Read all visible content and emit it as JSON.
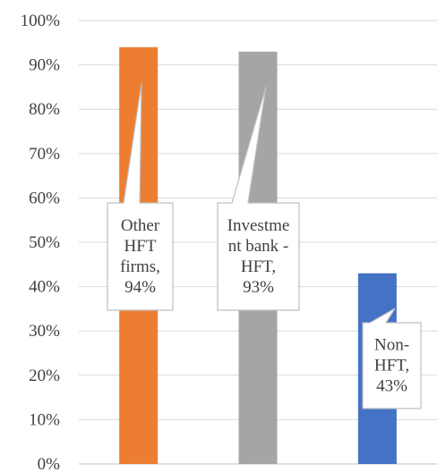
{
  "chart_data": {
    "type": "bar",
    "categories": [
      "Other HFT firms",
      "Investment bank - HFT",
      "Non-HFT"
    ],
    "values": [
      94,
      93,
      43
    ],
    "unit": "%",
    "ylim": [
      0,
      100
    ],
    "ytick_step": 10,
    "yticks": [
      "0%",
      "10%",
      "20%",
      "30%",
      "40%",
      "50%",
      "60%",
      "70%",
      "80%",
      "90%",
      "100%"
    ],
    "grid": true,
    "legend": "none",
    "colors": [
      "#ED7D31",
      "#A5A5A5",
      "#4472C4"
    ],
    "data_labels": [
      [
        "Other",
        "HFT",
        "firms,",
        "94%"
      ],
      [
        "Investme",
        "nt bank -",
        "HFT,",
        "93%"
      ],
      [
        "Non-",
        "HFT,",
        "43%"
      ]
    ],
    "title": "",
    "xlabel": "",
    "ylabel": ""
  }
}
